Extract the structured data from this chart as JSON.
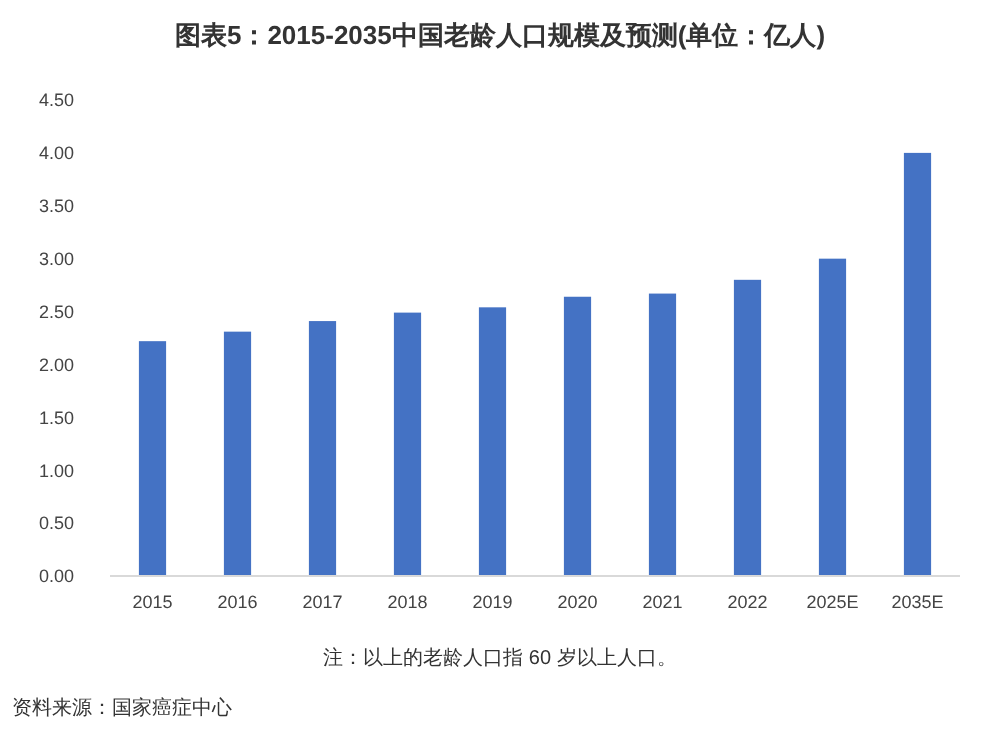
{
  "chart_data": {
    "type": "bar",
    "title": "图表5：2015-2035中国老龄人口规模及预测(单位：亿人)",
    "categories": [
      "2015",
      "2016",
      "2017",
      "2018",
      "2019",
      "2020",
      "2021",
      "2022",
      "2025E",
      "2035E"
    ],
    "values": [
      2.22,
      2.31,
      2.41,
      2.49,
      2.54,
      2.64,
      2.67,
      2.8,
      3.0,
      4.0
    ],
    "color": "#4472c4",
    "ylim": [
      0,
      4.5
    ],
    "yticks": [
      {
        "value": 0,
        "label": "0.00"
      },
      {
        "value": 0.5,
        "label": "0.50"
      },
      {
        "value": 1,
        "label": "1.00"
      },
      {
        "value": 1.5,
        "label": "1.50"
      },
      {
        "value": 2,
        "label": "2.00"
      },
      {
        "value": 2.5,
        "label": "2.50"
      },
      {
        "value": 3,
        "label": "3.00"
      },
      {
        "value": 3.5,
        "label": "3.50"
      },
      {
        "value": 4,
        "label": "4.00"
      },
      {
        "value": 4.5,
        "label": "4.50"
      }
    ],
    "annotations": [
      "注：以上的老龄人口指 60 岁以上人口。",
      "资料来源：国家癌症中心"
    ]
  }
}
